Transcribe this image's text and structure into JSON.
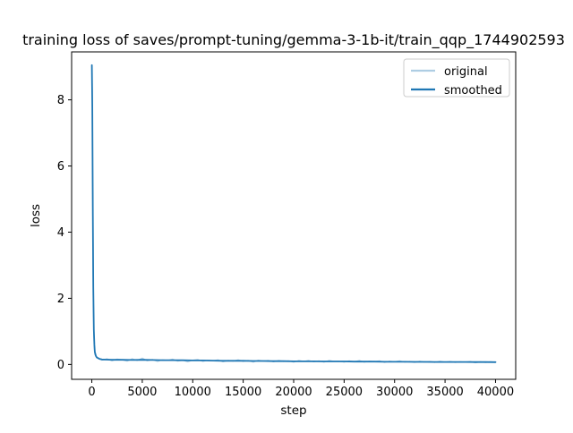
{
  "chart_data": {
    "type": "line",
    "title": "training loss of saves/prompt-tuning/gemma-3-1b-it/train_qqp_1744902593",
    "xlabel": "step",
    "ylabel": "loss",
    "xlim": [
      -2000,
      42000
    ],
    "ylim": [
      -0.45,
      9.45
    ],
    "xticks": [
      0,
      5000,
      10000,
      15000,
      20000,
      25000,
      30000,
      35000,
      40000
    ],
    "xtick_labels": [
      "0",
      "5000",
      "10000",
      "15000",
      "20000",
      "25000",
      "30000",
      "35000",
      "40000"
    ],
    "yticks": [
      0,
      2,
      4,
      6,
      8
    ],
    "ytick_labels": [
      "0",
      "2",
      "4",
      "6",
      "8"
    ],
    "grid": false,
    "legend_position": "upper right",
    "background_color": "#ffffff",
    "spine_color": "#000000",
    "series": [
      {
        "name": "original",
        "color": "#aecde3",
        "line_width": 1.2,
        "points": [
          [
            1,
            9.05
          ],
          [
            40,
            8.3
          ],
          [
            80,
            5.6
          ],
          [
            120,
            3.1
          ],
          [
            160,
            1.7
          ],
          [
            200,
            0.9
          ],
          [
            250,
            0.48
          ],
          [
            300,
            0.3
          ],
          [
            400,
            0.24
          ],
          [
            500,
            0.2
          ],
          [
            1000,
            0.13
          ],
          [
            1500,
            0.17
          ],
          [
            2000,
            0.11
          ],
          [
            2500,
            0.16
          ],
          [
            3000,
            0.14
          ],
          [
            3500,
            0.1
          ],
          [
            4000,
            0.17
          ],
          [
            4500,
            0.12
          ],
          [
            5000,
            0.19
          ],
          [
            5500,
            0.11
          ],
          [
            6000,
            0.15
          ],
          [
            6500,
            0.09
          ],
          [
            7000,
            0.14
          ],
          [
            7500,
            0.12
          ],
          [
            8000,
            0.16
          ],
          [
            8500,
            0.1
          ],
          [
            9000,
            0.13
          ],
          [
            9500,
            0.08
          ],
          [
            10000,
            0.13
          ],
          [
            10500,
            0.15
          ],
          [
            11000,
            0.09
          ],
          [
            11500,
            0.13
          ],
          [
            12000,
            0.11
          ],
          [
            12500,
            0.14
          ],
          [
            13000,
            0.08
          ],
          [
            13500,
            0.12
          ],
          [
            14000,
            0.1
          ],
          [
            14500,
            0.14
          ],
          [
            15000,
            0.09
          ],
          [
            15500,
            0.12
          ],
          [
            16000,
            0.07
          ],
          [
            16500,
            0.13
          ],
          [
            17000,
            0.1
          ],
          [
            17500,
            0.12
          ],
          [
            18000,
            0.08
          ],
          [
            18500,
            0.12
          ],
          [
            19000,
            0.09
          ],
          [
            19500,
            0.11
          ],
          [
            20000,
            0.07
          ],
          [
            20500,
            0.12
          ],
          [
            21000,
            0.09
          ],
          [
            21500,
            0.12
          ],
          [
            22000,
            0.08
          ],
          [
            22500,
            0.11
          ],
          [
            23000,
            0.07
          ],
          [
            23500,
            0.12
          ],
          [
            24000,
            0.09
          ],
          [
            24500,
            0.1
          ],
          [
            25000,
            0.07
          ],
          [
            25500,
            0.11
          ],
          [
            26000,
            0.08
          ],
          [
            26500,
            0.12
          ],
          [
            27000,
            0.07
          ],
          [
            27500,
            0.1
          ],
          [
            28000,
            0.08
          ],
          [
            28500,
            0.11
          ],
          [
            29000,
            0.06
          ],
          [
            29500,
            0.1
          ],
          [
            30000,
            0.08
          ],
          [
            30500,
            0.11
          ],
          [
            31000,
            0.07
          ],
          [
            31500,
            0.09
          ],
          [
            32000,
            0.06
          ],
          [
            32500,
            0.1
          ],
          [
            33000,
            0.07
          ],
          [
            33500,
            0.09
          ],
          [
            34000,
            0.06
          ],
          [
            34500,
            0.1
          ],
          [
            35000,
            0.07
          ],
          [
            35500,
            0.09
          ],
          [
            36000,
            0.06
          ],
          [
            36500,
            0.08
          ],
          [
            37000,
            0.07
          ],
          [
            37500,
            0.09
          ],
          [
            38000,
            0.05
          ],
          [
            38500,
            0.08
          ],
          [
            39000,
            0.06
          ],
          [
            39500,
            0.08
          ],
          [
            40000,
            0.07
          ]
        ]
      },
      {
        "name": "smoothed",
        "color": "#1f77b4",
        "line_width": 1.8,
        "points": [
          [
            1,
            9.05
          ],
          [
            50,
            7.8
          ],
          [
            100,
            4.5
          ],
          [
            150,
            2.3
          ],
          [
            200,
            1.05
          ],
          [
            250,
            0.6
          ],
          [
            300,
            0.38
          ],
          [
            400,
            0.26
          ],
          [
            500,
            0.21
          ],
          [
            750,
            0.17
          ],
          [
            1000,
            0.15
          ],
          [
            1500,
            0.145
          ],
          [
            2000,
            0.14
          ],
          [
            3000,
            0.14
          ],
          [
            4000,
            0.135
          ],
          [
            5000,
            0.14
          ],
          [
            6000,
            0.135
          ],
          [
            7000,
            0.13
          ],
          [
            8000,
            0.13
          ],
          [
            9000,
            0.125
          ],
          [
            10000,
            0.12
          ],
          [
            11000,
            0.12
          ],
          [
            12000,
            0.115
          ],
          [
            13000,
            0.11
          ],
          [
            14000,
            0.11
          ],
          [
            15000,
            0.11
          ],
          [
            16000,
            0.105
          ],
          [
            17000,
            0.105
          ],
          [
            18000,
            0.1
          ],
          [
            19000,
            0.1
          ],
          [
            20000,
            0.095
          ],
          [
            21000,
            0.095
          ],
          [
            22000,
            0.095
          ],
          [
            23000,
            0.09
          ],
          [
            24000,
            0.09
          ],
          [
            25000,
            0.09
          ],
          [
            26000,
            0.085
          ],
          [
            27000,
            0.085
          ],
          [
            28000,
            0.085
          ],
          [
            29000,
            0.08
          ],
          [
            30000,
            0.08
          ],
          [
            31000,
            0.08
          ],
          [
            32000,
            0.078
          ],
          [
            33000,
            0.078
          ],
          [
            34000,
            0.076
          ],
          [
            35000,
            0.076
          ],
          [
            36000,
            0.074
          ],
          [
            37000,
            0.074
          ],
          [
            38000,
            0.072
          ],
          [
            39000,
            0.072
          ],
          [
            40000,
            0.07
          ]
        ]
      }
    ],
    "legend": {
      "entries": [
        "original",
        "smoothed"
      ],
      "border_color": "#cccccc"
    }
  }
}
